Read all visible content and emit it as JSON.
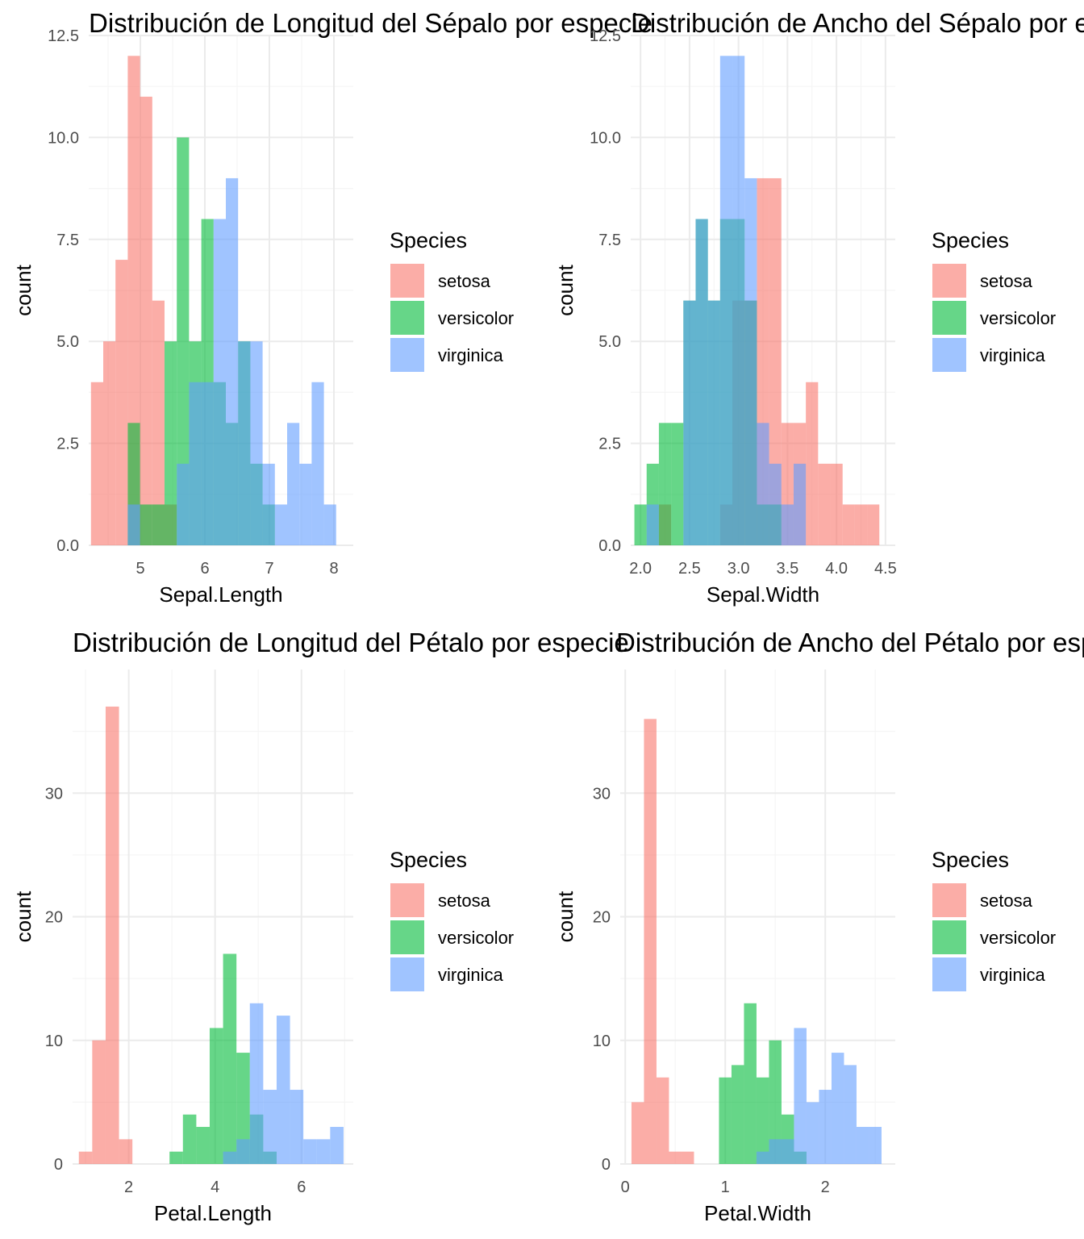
{
  "colors": {
    "setosa": "#F8766D",
    "versicolor": "#00BA38",
    "virginica": "#619CFF",
    "bar_opacity": 0.6,
    "grid_major": "#EBEBEB",
    "grid_minor": "#F5F5F5",
    "tick_text": "#4D4D4D"
  },
  "chart_data": [
    {
      "type": "bar",
      "subtype": "overlaid histogram",
      "title": "Distribución de Longitud del Sépalo por especie",
      "xlabel": "Sepal.Length",
      "ylabel": "count",
      "xlim": [
        4.2,
        8.3
      ],
      "ylim": [
        0,
        12.5
      ],
      "bin_width": 0.19,
      "x_ticks": [
        5,
        6,
        7,
        8
      ],
      "x_tick_labels": [
        "5",
        "6",
        "7",
        "8"
      ],
      "y_ticks": [
        0,
        2.5,
        5,
        7.5,
        10,
        12.5
      ],
      "y_tick_labels": [
        "0.0",
        "2.5",
        "5.0",
        "7.5",
        "10.0",
        "12.5"
      ],
      "grid": true,
      "legend": {
        "title": "Species",
        "position": "right",
        "entries": [
          "setosa",
          "versicolor",
          "virginica"
        ]
      },
      "series": [
        {
          "name": "setosa",
          "bins": [
            [
              4.33,
              4
            ],
            [
              4.52,
              5
            ],
            [
              4.71,
              7
            ],
            [
              4.9,
              12
            ],
            [
              5.09,
              11
            ],
            [
              5.28,
              6
            ],
            [
              5.47,
              1
            ]
          ]
        },
        {
          "name": "versicolor",
          "bins": [
            [
              4.9,
              3
            ],
            [
              5.09,
              1
            ],
            [
              5.28,
              1
            ],
            [
              5.47,
              5
            ],
            [
              5.66,
              10
            ],
            [
              5.85,
              5
            ],
            [
              6.04,
              8
            ],
            [
              6.23,
              4
            ],
            [
              6.42,
              3
            ],
            [
              6.61,
              5
            ],
            [
              6.8,
              2
            ],
            [
              6.99,
              1
            ]
          ]
        },
        {
          "name": "virginica",
          "bins": [
            [
              4.9,
              1
            ],
            [
              5.66,
              2
            ],
            [
              5.85,
              4
            ],
            [
              6.04,
              4
            ],
            [
              6.23,
              8
            ],
            [
              6.42,
              9
            ],
            [
              6.61,
              5
            ],
            [
              6.8,
              5
            ],
            [
              6.99,
              2
            ],
            [
              7.18,
              1
            ],
            [
              7.37,
              3
            ],
            [
              7.56,
              2
            ],
            [
              7.75,
              4
            ],
            [
              7.94,
              1
            ]
          ]
        }
      ]
    },
    {
      "type": "bar",
      "subtype": "overlaid histogram",
      "title": "Distribución de Ancho del Sépalo por especie",
      "xlabel": "Sepal.Width",
      "ylabel": "count",
      "xlim": [
        1.9,
        4.6
      ],
      "ylim": [
        0,
        12.5
      ],
      "bin_width": 0.125,
      "x_ticks": [
        2.0,
        2.5,
        3.0,
        3.5,
        4.0,
        4.5
      ],
      "x_tick_labels": [
        "2.0",
        "2.5",
        "3.0",
        "3.5",
        "4.0",
        "4.5"
      ],
      "y_ticks": [
        0,
        2.5,
        5,
        7.5,
        10,
        12.5
      ],
      "y_tick_labels": [
        "0.0",
        "2.5",
        "5.0",
        "7.5",
        "10.0",
        "12.5"
      ],
      "grid": true,
      "legend": {
        "title": "Species",
        "position": "right",
        "entries": [
          "setosa",
          "versicolor",
          "virginica"
        ]
      },
      "series": [
        {
          "name": "setosa",
          "bins": [
            [
              2.25,
              1
            ],
            [
              2.875,
              1
            ],
            [
              3.0,
              6
            ],
            [
              3.125,
              6
            ],
            [
              3.25,
              9
            ],
            [
              3.375,
              9
            ],
            [
              3.5,
              3
            ],
            [
              3.625,
              3
            ],
            [
              3.75,
              4
            ],
            [
              3.875,
              2
            ],
            [
              4.0,
              2
            ],
            [
              4.125,
              1
            ],
            [
              4.25,
              1
            ],
            [
              4.375,
              1
            ]
          ]
        },
        {
          "name": "versicolor",
          "bins": [
            [
              2.0,
              1
            ],
            [
              2.125,
              2
            ],
            [
              2.25,
              3
            ],
            [
              2.375,
              3
            ],
            [
              2.5,
              6
            ],
            [
              2.625,
              8
            ],
            [
              2.75,
              6
            ],
            [
              2.875,
              8
            ],
            [
              3.0,
              8
            ],
            [
              3.125,
              6
            ],
            [
              3.25,
              1
            ],
            [
              3.375,
              1
            ]
          ]
        },
        {
          "name": "virginica",
          "bins": [
            [
              2.125,
              1
            ],
            [
              2.5,
              6
            ],
            [
              2.625,
              8
            ],
            [
              2.75,
              6
            ],
            [
              2.875,
              12
            ],
            [
              3.0,
              12
            ],
            [
              3.125,
              9
            ],
            [
              3.25,
              3
            ],
            [
              3.375,
              2
            ],
            [
              3.5,
              1
            ],
            [
              3.625,
              2
            ]
          ]
        }
      ]
    },
    {
      "type": "bar",
      "subtype": "overlaid histogram",
      "title": "Distribución de Longitud del Pétalo por especie",
      "xlabel": "Petal.Length",
      "ylabel": "count",
      "xlim": [
        0.7,
        7.2
      ],
      "ylim": [
        0,
        40
      ],
      "bin_width": 0.31,
      "x_ticks": [
        2,
        4,
        6
      ],
      "x_tick_labels": [
        "2",
        "4",
        "6"
      ],
      "y_ticks": [
        0,
        10,
        20,
        30
      ],
      "y_tick_labels": [
        "0",
        "10",
        "20",
        "30"
      ],
      "grid": true,
      "legend": {
        "title": "Species",
        "position": "right",
        "entries": [
          "setosa",
          "versicolor",
          "virginica"
        ]
      },
      "series": [
        {
          "name": "setosa",
          "bins": [
            [
              1.0,
              1
            ],
            [
              1.31,
              10
            ],
            [
              1.62,
              37
            ],
            [
              1.93,
              2
            ]
          ]
        },
        {
          "name": "versicolor",
          "bins": [
            [
              3.1,
              1
            ],
            [
              3.41,
              4
            ],
            [
              3.72,
              3
            ],
            [
              4.03,
              11
            ],
            [
              4.34,
              17
            ],
            [
              4.65,
              9
            ],
            [
              4.96,
              4
            ],
            [
              5.27,
              1
            ]
          ]
        },
        {
          "name": "virginica",
          "bins": [
            [
              4.34,
              1
            ],
            [
              4.65,
              2
            ],
            [
              4.96,
              13
            ],
            [
              5.27,
              6
            ],
            [
              5.58,
              12
            ],
            [
              5.89,
              6
            ],
            [
              6.2,
              2
            ],
            [
              6.51,
              2
            ],
            [
              6.82,
              3
            ]
          ]
        }
      ]
    },
    {
      "type": "bar",
      "subtype": "overlaid histogram",
      "title": "Distribución de Ancho del Pétalo por especie",
      "xlabel": "Petal.Width",
      "ylabel": "count",
      "xlim": [
        -0.05,
        2.7
      ],
      "ylim": [
        0,
        40
      ],
      "bin_width": 0.125,
      "x_ticks": [
        0,
        1,
        2
      ],
      "x_tick_labels": [
        "0",
        "1",
        "2"
      ],
      "y_ticks": [
        0,
        10,
        20,
        30
      ],
      "y_tick_labels": [
        "0",
        "10",
        "20",
        "30"
      ],
      "grid": true,
      "legend": {
        "title": "Species",
        "position": "right",
        "entries": [
          "setosa",
          "versicolor",
          "virginica"
        ]
      },
      "series": [
        {
          "name": "setosa",
          "bins": [
            [
              0.125,
              5
            ],
            [
              0.25,
              36
            ],
            [
              0.375,
              7
            ],
            [
              0.5,
              1
            ],
            [
              0.625,
              1
            ]
          ]
        },
        {
          "name": "versicolor",
          "bins": [
            [
              1.0,
              7
            ],
            [
              1.125,
              8
            ],
            [
              1.25,
              13
            ],
            [
              1.375,
              7
            ],
            [
              1.5,
              10
            ],
            [
              1.625,
              4
            ],
            [
              1.75,
              1
            ]
          ]
        },
        {
          "name": "virginica",
          "bins": [
            [
              1.375,
              1
            ],
            [
              1.5,
              2
            ],
            [
              1.625,
              2
            ],
            [
              1.75,
              11
            ],
            [
              1.875,
              5
            ],
            [
              2.0,
              6
            ],
            [
              2.125,
              9
            ],
            [
              2.25,
              8
            ],
            [
              2.375,
              3
            ],
            [
              2.5,
              3
            ]
          ]
        }
      ]
    }
  ]
}
